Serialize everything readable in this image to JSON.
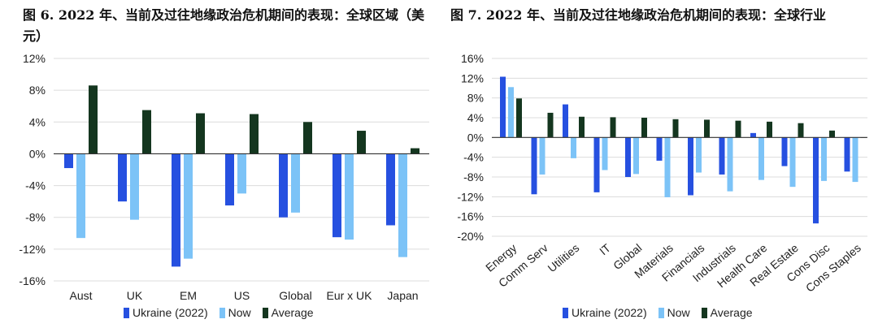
{
  "colors": {
    "ukraine": "#2650e0",
    "now": "#7cc3f7",
    "average": "#14361f",
    "grid": "#dcdcdc",
    "axis": "#333333"
  },
  "legend": [
    "Ukraine (2022)",
    "Now",
    "Average"
  ],
  "chart_data": [
    {
      "type": "bar",
      "title": "图 6. 2022 年、当前及过往地缘政治危机期间的表现：全球区域（美元）",
      "categories": [
        "Aust",
        "UK",
        "EM",
        "US",
        "Global",
        "Eur x UK",
        "Japan"
      ],
      "series": [
        {
          "name": "Ukraine (2022)",
          "values": [
            -1.8,
            -6.0,
            -14.2,
            -6.5,
            -8.0,
            -10.5,
            -9.0
          ]
        },
        {
          "name": "Now",
          "values": [
            -10.6,
            -8.3,
            -13.2,
            -5.0,
            -7.4,
            -10.8,
            -13.0
          ]
        },
        {
          "name": "Average",
          "values": [
            8.6,
            5.5,
            5.1,
            5.0,
            4.0,
            2.9,
            0.7
          ]
        }
      ],
      "ylim": [
        -16,
        12
      ],
      "yticks": [
        -16,
        -12,
        -8,
        -4,
        0,
        4,
        8,
        12
      ],
      "ytick_labels": [
        "-16%",
        "-12%",
        "-8%",
        "-4%",
        "0%",
        "4%",
        "8%",
        "12%"
      ],
      "xlabel": "",
      "ylabel": "",
      "legend_position": "bottom",
      "grid": true
    },
    {
      "type": "bar",
      "title": "图 7. 2022 年、当前及过往地缘政治危机期间的表现：全球行业",
      "categories": [
        "Energy",
        "Comm Serv",
        "Utilities",
        "IT",
        "Global",
        "Materials",
        "Financials",
        "Industrials",
        "Health Care",
        "Real Estate",
        "Cons Disc",
        "Cons Staples"
      ],
      "series": [
        {
          "name": "Ukraine (2022)",
          "values": [
            12.3,
            -11.5,
            6.7,
            -11.1,
            -8.0,
            -4.7,
            -11.7,
            -7.5,
            0.9,
            -5.8,
            -17.4,
            -6.9
          ]
        },
        {
          "name": "Now",
          "values": [
            10.2,
            -7.5,
            -4.2,
            -6.6,
            -7.4,
            -12.1,
            -7.1,
            -10.9,
            -8.6,
            -10.0,
            -8.8,
            -9.0
          ]
        },
        {
          "name": "Average",
          "values": [
            7.9,
            5.0,
            4.2,
            4.1,
            4.0,
            3.7,
            3.6,
            3.4,
            3.2,
            2.9,
            1.4,
            0.0
          ]
        }
      ],
      "ylim": [
        -20,
        16
      ],
      "yticks": [
        -20,
        -16,
        -12,
        -8,
        -4,
        0,
        4,
        8,
        12,
        16
      ],
      "ytick_labels": [
        "-20%",
        "-16%",
        "-12%",
        "-8%",
        "-4%",
        "0%",
        "4%",
        "8%",
        "12%",
        "16%"
      ],
      "xlabel": "",
      "ylabel": "",
      "legend_position": "bottom",
      "grid": true
    }
  ]
}
